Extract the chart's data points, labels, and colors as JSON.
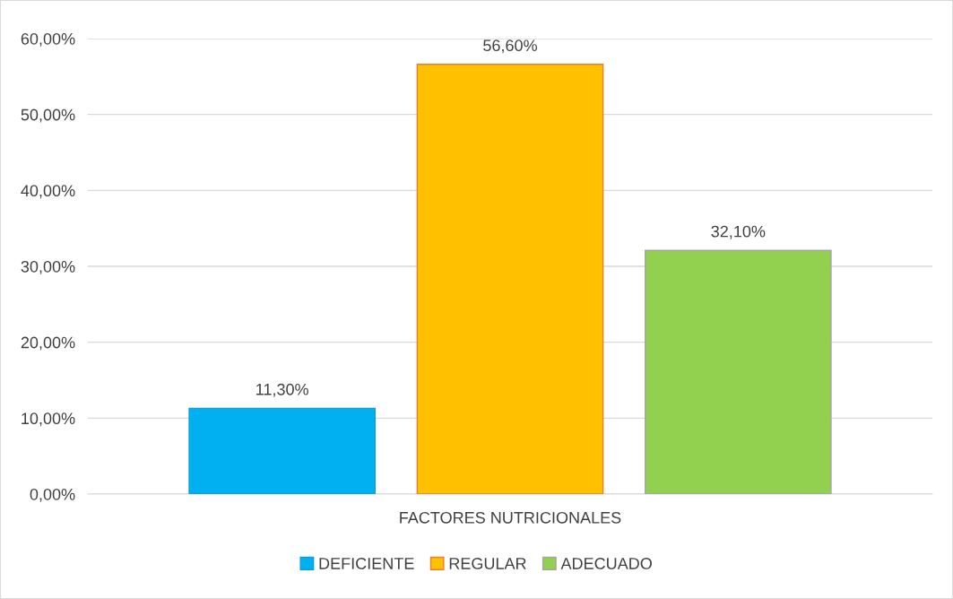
{
  "chart_data": {
    "type": "bar",
    "categories": [
      "FACTORES NUTRICIONALES"
    ],
    "series": [
      {
        "name": "DEFICIENTE",
        "color": "#00b0f0",
        "values": [
          11.3
        ],
        "value_labels": [
          "11,30%"
        ]
      },
      {
        "name": "REGULAR",
        "color": "#ffc000",
        "values": [
          56.6
        ],
        "value_labels": [
          "56,60%"
        ]
      },
      {
        "name": "ADECUADO",
        "color": "#92d050",
        "values": [
          32.1
        ],
        "value_labels": [
          "32,10%"
        ]
      }
    ],
    "ylim": [
      0,
      60
    ],
    "yticks": [
      {
        "value": 0,
        "label": "0,00%"
      },
      {
        "value": 10,
        "label": "10,00%"
      },
      {
        "value": 20,
        "label": "20,00%"
      },
      {
        "value": 30,
        "label": "30,00%"
      },
      {
        "value": 40,
        "label": "40,00%"
      },
      {
        "value": 50,
        "label": "50,00%"
      },
      {
        "value": 60,
        "label": "60,00%"
      }
    ],
    "grid": "y",
    "legend": "bottom"
  }
}
